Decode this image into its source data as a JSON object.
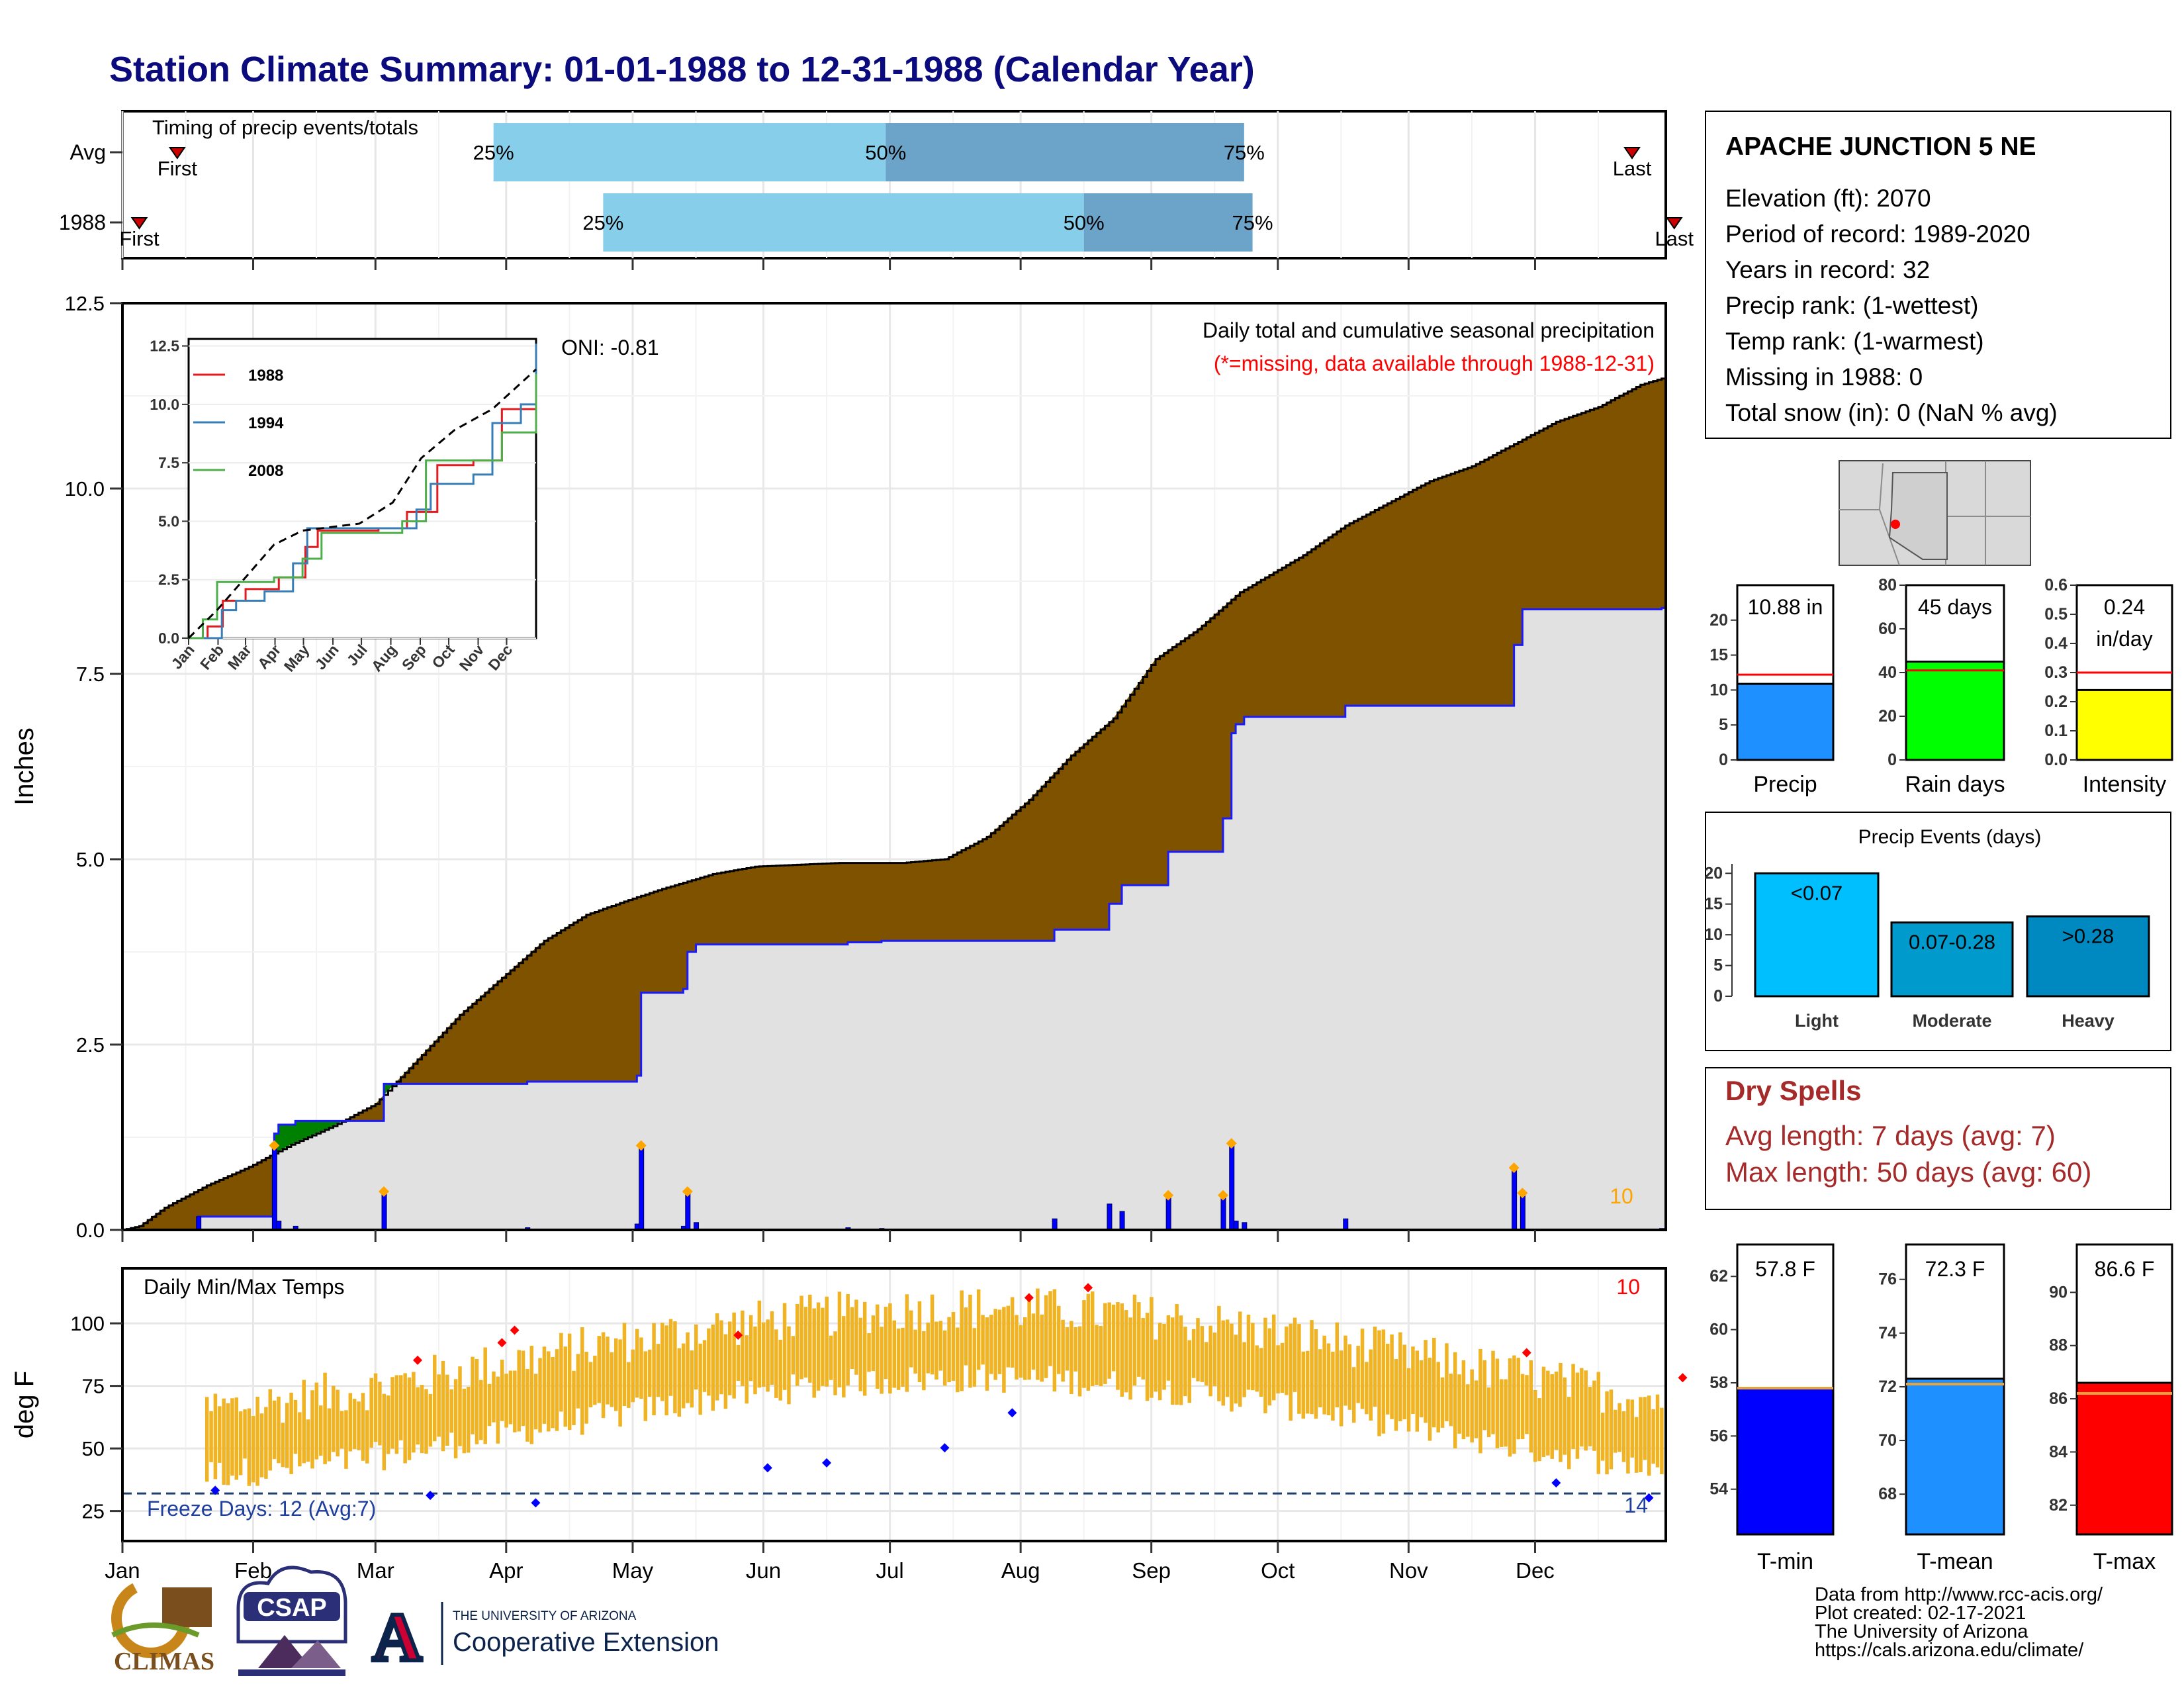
{
  "title": "Station Climate Summary: 01-01-1988 to 12-31-1988 (Calendar Year)",
  "timing": {
    "title": "Timing of precip events/totals",
    "rows": [
      {
        "label": "Avg",
        "first_doy": 13,
        "p25_doy": 88,
        "p50_doy": 181,
        "p75_doy": 266,
        "last_doy": 358,
        "first_label": "First",
        "last_label": "Last"
      },
      {
        "label": "1988",
        "first_doy": 4,
        "p25_doy": 114,
        "p50_doy": 228,
        "p75_doy": 268,
        "last_doy": 368,
        "first_label": "First",
        "last_label": "Last"
      }
    ],
    "labels": {
      "p25": "25%",
      "p50": "50%",
      "p75": "75%"
    },
    "colors": {
      "light": "#87ceeb",
      "dark": "#6ba3c9"
    }
  },
  "station": {
    "name": "APACHE JUNCTION 5 NE",
    "lines": [
      "Elevation (ft): 2070",
      "Period of record: 1989-2020",
      "Years in record: 32",
      "Precip rank:  (1-wettest)",
      "Temp rank:  (1-warmest)",
      "Missing in 1988: 0",
      "Total snow (in): 0 (NaN % avg)"
    ]
  },
  "main_chart": {
    "ylabel": "Inches",
    "yticks": [
      "0.0",
      "2.5",
      "5.0",
      "7.5",
      "10.0",
      "12.5"
    ],
    "ylim": [
      0,
      12.5
    ],
    "oni": "ONI: -0.81",
    "caption": "Daily total and cumulative seasonal precipitation",
    "missing_note": "(*=missing, data available through 1988-12-31)",
    "count_label": "10",
    "colors": {
      "above": "#00008b",
      "deficit": "#7f5200",
      "surplus": "#008000",
      "avg": "#000000",
      "daily": "#0000ff",
      "diamond": "#ffa500"
    }
  },
  "inset": {
    "yticks": [
      "0.0",
      "2.5",
      "5.0",
      "7.5",
      "10.0",
      "12.5"
    ],
    "xticks": [
      "Jan",
      "Feb",
      "Mar",
      "Apr",
      "May",
      "Jun",
      "Jul",
      "Aug",
      "Sep",
      "Oct",
      "Nov",
      "Dec"
    ],
    "legend": [
      {
        "name": "1988",
        "color": "#e41a1c"
      },
      {
        "name": "1994",
        "color": "#377eb8"
      },
      {
        "name": "2008",
        "color": "#4daf4a"
      }
    ]
  },
  "temp_chart": {
    "ylabel": "deg F",
    "yticks": [
      "25",
      "50",
      "75",
      "100"
    ],
    "caption": "Daily Min/Max Temps",
    "count_top": "10",
    "count_bottom": "14",
    "freeze_label": "Freeze Days: 12 (Avg:7)"
  },
  "months": [
    "Jan",
    "Feb",
    "Mar",
    "Apr",
    "May",
    "Jun",
    "Jul",
    "Aug",
    "Sep",
    "Oct",
    "Nov",
    "Dec"
  ],
  "precip_stats": {
    "chart_data": [
      {
        "type": "bar",
        "categories": [
          "Precip"
        ],
        "values": [
          10.88
        ],
        "avg_line": 12.2,
        "ylim": [
          0,
          25
        ],
        "label": "10.88 in",
        "yticks": [
          "0",
          "5",
          "10",
          "15",
          "20"
        ],
        "color": "#1e90ff"
      },
      {
        "type": "bar",
        "categories": [
          "Rain days"
        ],
        "values": [
          45
        ],
        "avg_line": 41,
        "ylim": [
          0,
          80
        ],
        "label": "45 days",
        "yticks": [
          "0",
          "20",
          "40",
          "60",
          "80"
        ],
        "color": "#00ff00"
      },
      {
        "type": "bar",
        "categories": [
          "Intensity"
        ],
        "values": [
          0.24
        ],
        "avg_line": 0.3,
        "ylim": [
          0,
          0.6
        ],
        "label": "0.24",
        "label2": "in/day",
        "yticks": [
          "0.0",
          "0.1",
          "0.2",
          "0.3",
          "0.4",
          "0.5",
          "0.6"
        ],
        "color": "#ffff00"
      }
    ]
  },
  "events": {
    "title": "Precip Events (days)",
    "chart_data": {
      "type": "bar",
      "categories": [
        "Light",
        "Moderate",
        "Heavy"
      ],
      "values": [
        20,
        12,
        13
      ],
      "labels": [
        "<0.07",
        "0.07-0.28",
        ">0.28"
      ],
      "colors": [
        "#00bfff",
        "#009acd",
        "#0089c0"
      ],
      "yticks": [
        "0",
        "5",
        "10",
        "15",
        "20"
      ],
      "ylim": [
        0,
        21
      ]
    }
  },
  "dry_spells": {
    "title": "Dry Spells",
    "lines": [
      "Avg length: 7 days (avg: 7)",
      "Max length: 50 days (avg: 60)"
    ],
    "color": "#a52a2a"
  },
  "temp_stats": {
    "chart_data": [
      {
        "type": "bar",
        "categories": [
          "T-min"
        ],
        "values": [
          57.8
        ],
        "avg_line": 57.8,
        "ylim": [
          52.3,
          63.2
        ],
        "label": "57.8 F",
        "yticks": [
          "54",
          "56",
          "58",
          "60",
          "62"
        ],
        "color": "#0000ff"
      },
      {
        "type": "bar",
        "categories": [
          "T-mean"
        ],
        "values": [
          72.3
        ],
        "avg_line": 72.1,
        "ylim": [
          66.5,
          77.3
        ],
        "label": "72.3 F",
        "yticks": [
          "68",
          "70",
          "72",
          "74",
          "76"
        ],
        "color": "#1e90ff"
      },
      {
        "type": "bar",
        "categories": [
          "T-max"
        ],
        "values": [
          86.6
        ],
        "avg_line": 86.2,
        "ylim": [
          80.9,
          91.8
        ],
        "label": "86.6 F",
        "yticks": [
          "82",
          "84",
          "86",
          "88",
          "90"
        ],
        "color": "#ff0000"
      }
    ]
  },
  "footer": {
    "lines": [
      "Data from http://www.rcc-acis.org/",
      "Plot created: 02-17-2021",
      "The University of Arizona",
      "https://cals.arizona.edu/climate/"
    ],
    "ua_small": "THE UNIVERSITY OF ARIZONA",
    "ua_big": "Cooperative Extension",
    "climas": "CLIMAS",
    "csap": "CSAP",
    "ua_letter": "A"
  }
}
